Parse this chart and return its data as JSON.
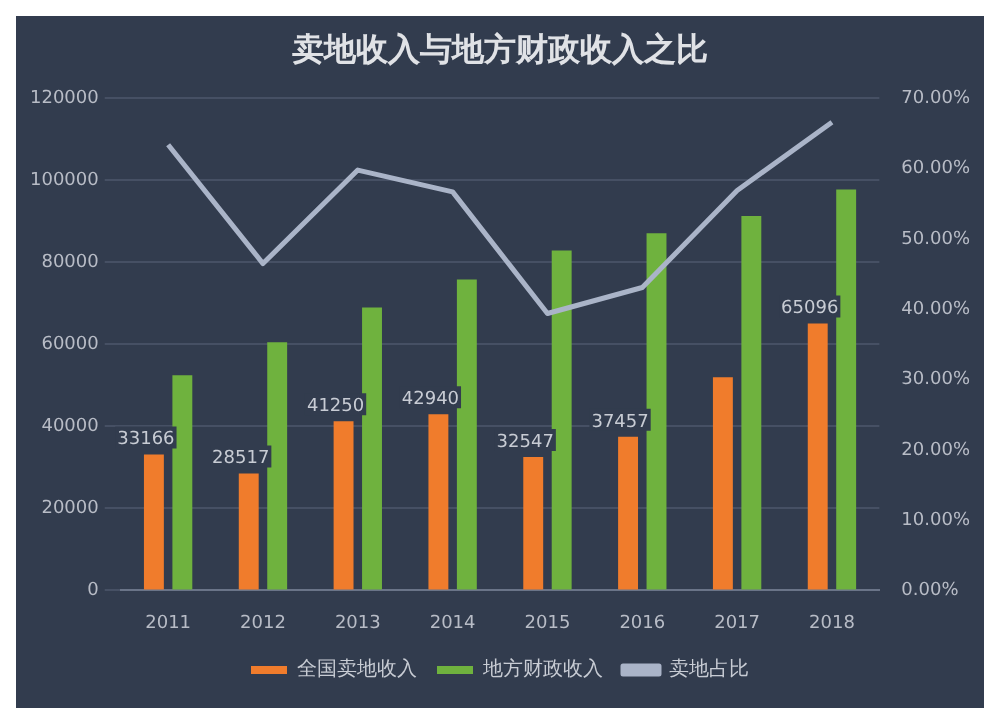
{
  "chart_data": {
    "type": "bar",
    "title": "卖地收入与地方财政收入之比",
    "categories": [
      "2011",
      "2012",
      "2013",
      "2014",
      "2015",
      "2016",
      "2017",
      "2018"
    ],
    "series": [
      {
        "name": "全国卖地收入",
        "color": "#f07c2c",
        "values": [
          33166,
          28517,
          41250,
          42940,
          32547,
          37457,
          52000,
          65096
        ],
        "value_labels": [
          "33166",
          "28517",
          "41250",
          "42940",
          "32547",
          "37457",
          null,
          "65096"
        ]
      },
      {
        "name": "地方财政收入",
        "color": "#6fb23e",
        "values": [
          52500,
          60500,
          69000,
          75800,
          82900,
          87100,
          91300,
          97800
        ]
      },
      {
        "name": "卖地占比",
        "type": "line",
        "axis": "y2",
        "color": "#aab4c8",
        "values": [
          63.4,
          46.5,
          59.8,
          56.7,
          39.4,
          43.1,
          56.9,
          66.6
        ]
      }
    ],
    "ylim": [
      0,
      120000
    ],
    "yticks": [
      0,
      20000,
      40000,
      60000,
      80000,
      100000,
      120000
    ],
    "y2lim": [
      0,
      70
    ],
    "y2ticks": [
      {
        "value": 0,
        "label": "0.00%"
      },
      {
        "value": 10,
        "label": "10.00%"
      },
      {
        "value": 20,
        "label": "20.00%"
      },
      {
        "value": 30,
        "label": "30.00%"
      },
      {
        "value": 40,
        "label": "40.00%"
      },
      {
        "value": 50,
        "label": "50.00%"
      },
      {
        "value": 60,
        "label": "60.00%"
      },
      {
        "value": 70,
        "label": "70.00%"
      }
    ],
    "grid": "y",
    "legend": "bottom",
    "marker": "none",
    "line_style": "solid"
  }
}
